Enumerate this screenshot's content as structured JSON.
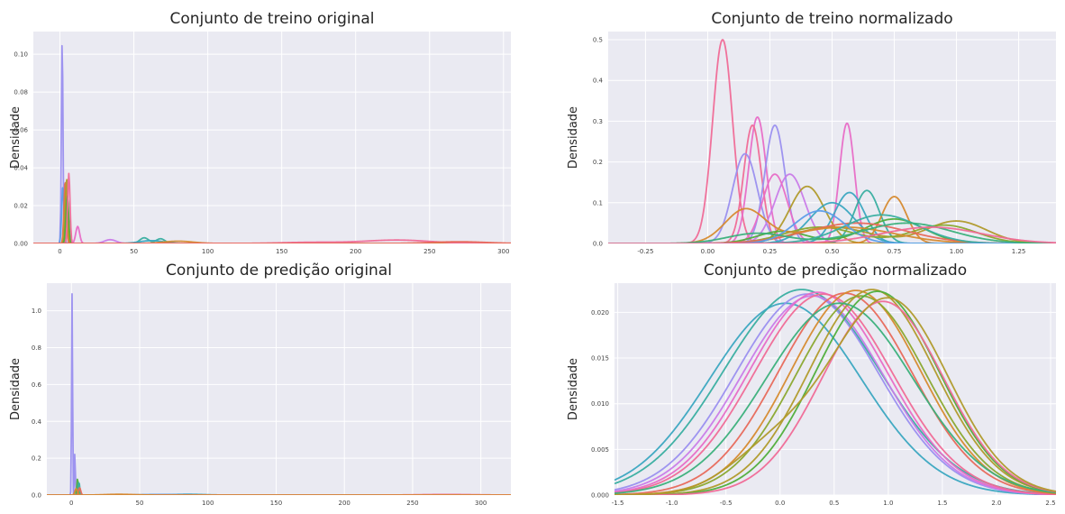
{
  "figure": {
    "background": "#ffffff",
    "axes_background": "#eaeaf2",
    "grid_color": "#ffffff",
    "palette": [
      "#e8695a",
      "#d68a2e",
      "#b09a2a",
      "#8aa82e",
      "#4fae3a",
      "#3ab07a",
      "#38aea0",
      "#3aa6c0",
      "#5b9de8",
      "#9a8fef",
      "#c97be8",
      "#e86cc6",
      "#f06a96"
    ]
  },
  "chart_data": [
    {
      "id": "treino-original",
      "type": "line",
      "subtype": "kde",
      "title": "Conjunto de treino original",
      "xlabel": "",
      "ylabel": "Densidade",
      "xlim": [
        -18,
        305
      ],
      "ylim": [
        0,
        0.112
      ],
      "xticks": [
        0,
        50,
        100,
        150,
        200,
        250,
        300
      ],
      "yticks": [
        0.0,
        0.02,
        0.04,
        0.06,
        0.08,
        0.1
      ],
      "xtick_labels": [
        "0",
        "50",
        "100",
        "150",
        "200",
        "250",
        "300"
      ],
      "ytick_labels": [
        "0.00",
        "0.02",
        "0.04",
        "0.06",
        "0.08",
        "0.10"
      ],
      "grid": true,
      "series": [
        {
          "color": "#9a8fef",
          "peaks": [
            [
              1.5,
              0.107,
              0.55
            ]
          ]
        },
        {
          "color": "#5b9de8",
          "peaks": [
            [
              2,
              0.03,
              0.8
            ]
          ]
        },
        {
          "color": "#e8695a",
          "peaks": [
            [
              3.5,
              0.033,
              0.8
            ]
          ]
        },
        {
          "color": "#d68a2e",
          "peaks": [
            [
              4,
              0.028,
              0.9
            ]
          ]
        },
        {
          "color": "#b09a2a",
          "peaks": [
            [
              4.5,
              0.034,
              0.8
            ]
          ]
        },
        {
          "color": "#4fae3a",
          "peaks": [
            [
              5,
              0.025,
              0.9
            ]
          ]
        },
        {
          "color": "#f06a96",
          "peaks": [
            [
              6,
              0.037,
              0.8
            ]
          ]
        },
        {
          "color": "#e86cc6",
          "peaks": [
            [
              12,
              0.009,
              1.3
            ]
          ]
        },
        {
          "color": "#c97be8",
          "peaks": [
            [
              34,
              0.002,
              4
            ]
          ]
        },
        {
          "color": "#38aea0",
          "peaks": [
            [
              57,
              0.003,
              3
            ],
            [
              68,
              0.0025,
              3
            ]
          ]
        },
        {
          "color": "#3aa6c0",
          "peaks": [
            [
              62,
              0.0015,
              8
            ]
          ]
        },
        {
          "color": "#d68a2e",
          "peaks": [
            [
              80,
              0.0012,
              10
            ]
          ]
        },
        {
          "color": "#f06a96",
          "peaks": [
            [
              228,
              0.0018,
              22
            ],
            [
              170,
              0.0006,
              20
            ]
          ]
        },
        {
          "color": "#e8695a",
          "peaks": [
            [
              270,
              0.0009,
              18
            ]
          ]
        }
      ]
    },
    {
      "id": "treino-normalizado",
      "type": "line",
      "subtype": "kde",
      "title": "Conjunto de treino normalizado",
      "xlabel": "",
      "ylabel": "Densidade",
      "xlim": [
        -0.4,
        1.4
      ],
      "ylim": [
        0,
        0.52
      ],
      "xticks": [
        -0.25,
        0.0,
        0.25,
        0.5,
        0.75,
        1.0,
        1.25
      ],
      "yticks": [
        0.0,
        0.1,
        0.2,
        0.3,
        0.4,
        0.5
      ],
      "xtick_labels": [
        "-0.25",
        "0.00",
        "0.25",
        "0.50",
        "0.75",
        "1.00",
        "1.25"
      ],
      "ytick_labels": [
        "0.0",
        "0.1",
        "0.2",
        "0.3",
        "0.4",
        "0.5"
      ],
      "grid": true,
      "series": [
        {
          "color": "#f06a96",
          "peaks": [
            [
              0.06,
              0.5,
              0.04
            ]
          ]
        },
        {
          "color": "#e86cc6",
          "peaks": [
            [
              0.2,
              0.31,
              0.035
            ]
          ]
        },
        {
          "color": "#f06a96",
          "peaks": [
            [
              0.18,
              0.29,
              0.035
            ]
          ]
        },
        {
          "color": "#9a8fef",
          "peaks": [
            [
              0.27,
              0.29,
              0.04
            ]
          ]
        },
        {
          "color": "#9a8fef",
          "peaks": [
            [
              0.15,
              0.22,
              0.05
            ]
          ]
        },
        {
          "color": "#e86cc6",
          "peaks": [
            [
              0.56,
              0.295,
              0.03
            ]
          ]
        },
        {
          "color": "#c97be8",
          "peaks": [
            [
              0.33,
              0.17,
              0.06
            ]
          ]
        },
        {
          "color": "#e86cc6",
          "peaks": [
            [
              0.27,
              0.17,
              0.05
            ]
          ]
        },
        {
          "color": "#b09a2a",
          "peaks": [
            [
              0.4,
              0.14,
              0.07
            ]
          ]
        },
        {
          "color": "#3aa6c0",
          "peaks": [
            [
              0.57,
              0.125,
              0.06
            ]
          ]
        },
        {
          "color": "#38aea0",
          "peaks": [
            [
              0.64,
              0.13,
              0.05
            ]
          ]
        },
        {
          "color": "#d68a2e",
          "peaks": [
            [
              0.75,
              0.115,
              0.05
            ]
          ]
        },
        {
          "color": "#3aa6c0",
          "peaks": [
            [
              0.5,
              0.1,
              0.09
            ]
          ]
        },
        {
          "color": "#4fae3a",
          "peaks": [
            [
              0.75,
              0.06,
              0.12
            ],
            [
              0.3,
              0.03,
              0.1
            ]
          ]
        },
        {
          "color": "#b09a2a",
          "peaks": [
            [
              1.0,
              0.055,
              0.12
            ],
            [
              0.5,
              0.04,
              0.15
            ]
          ]
        },
        {
          "color": "#8aa82e",
          "peaks": [
            [
              0.95,
              0.045,
              0.13
            ],
            [
              0.45,
              0.04,
              0.14
            ]
          ]
        },
        {
          "color": "#e8695a",
          "peaks": [
            [
              0.6,
              0.05,
              0.2
            ]
          ]
        },
        {
          "color": "#d68a2e",
          "peaks": [
            [
              0.15,
              0.08,
              0.08
            ],
            [
              0.55,
              0.04,
              0.2
            ]
          ]
        },
        {
          "color": "#38aea0",
          "peaks": [
            [
              0.7,
              0.07,
              0.15
            ]
          ]
        },
        {
          "color": "#5b9de8",
          "peaks": [
            [
              0.45,
              0.08,
              0.1
            ]
          ]
        },
        {
          "color": "#3ab07a",
          "peaks": [
            [
              0.8,
              0.05,
              0.18
            ],
            [
              0.2,
              0.025,
              0.12
            ]
          ]
        },
        {
          "color": "#f06a96",
          "peaks": [
            [
              0.9,
              0.04,
              0.2
            ]
          ]
        }
      ]
    },
    {
      "id": "predicao-original",
      "type": "line",
      "subtype": "kde",
      "title": "Conjunto de predição original",
      "xlabel": "",
      "ylabel": "Densidade",
      "xlim": [
        -18,
        322
      ],
      "ylim": [
        0,
        1.15
      ],
      "xticks": [
        0,
        50,
        100,
        150,
        200,
        250,
        300
      ],
      "yticks": [
        0.0,
        0.2,
        0.4,
        0.6,
        0.8,
        1.0
      ],
      "xtick_labels": [
        "0",
        "50",
        "100",
        "150",
        "200",
        "250",
        "300"
      ],
      "ytick_labels": [
        "0.0",
        "0.2",
        "0.4",
        "0.6",
        "0.8",
        "1.0"
      ],
      "grid": true,
      "series": [
        {
          "color": "#9a8fef",
          "peaks": [
            [
              0.5,
              1.1,
              0.35
            ]
          ]
        },
        {
          "color": "#9a8fef",
          "peaks": [
            [
              2.5,
              0.23,
              0.35
            ]
          ]
        },
        {
          "color": "#4fae3a",
          "peaks": [
            [
              4.5,
              0.09,
              0.5
            ]
          ]
        },
        {
          "color": "#38aea0",
          "peaks": [
            [
              5.5,
              0.07,
              0.6
            ]
          ]
        },
        {
          "color": "#e8695a",
          "peaks": [
            [
              6,
              0.04,
              0.8
            ]
          ]
        },
        {
          "color": "#d68a2e",
          "peaks": [
            [
              3.5,
              0.035,
              0.9
            ]
          ]
        },
        {
          "color": "#3aa6c0",
          "peaks": [
            [
              85,
              0.004,
              12
            ]
          ]
        },
        {
          "color": "#5b9de8",
          "peaks": [
            [
              65,
              0.003,
              15
            ]
          ]
        },
        {
          "color": "#f06a96",
          "peaks": [
            [
              275,
              0.003,
              20
            ]
          ]
        },
        {
          "color": "#d68a2e",
          "peaks": [
            [
              35,
              0.004,
              10
            ]
          ]
        }
      ]
    },
    {
      "id": "predicao-normalizado",
      "type": "line",
      "subtype": "kde",
      "title": "Conjunto de predição normalizado",
      "xlabel": "",
      "ylabel": "Densidade",
      "xlim": [
        -1.53,
        2.55
      ],
      "ylim": [
        0,
        0.0232
      ],
      "xticks": [
        -1.5,
        -1.0,
        -0.5,
        0.0,
        0.5,
        1.0,
        1.5,
        2.0,
        2.5
      ],
      "yticks": [
        0.0,
        0.005,
        0.01,
        0.015,
        0.02
      ],
      "xtick_labels": [
        "-1.5",
        "-1.0",
        "-0.5",
        "0.0",
        "0.5",
        "1.0",
        "1.5",
        "2.0",
        "2.5"
      ],
      "ytick_labels": [
        "0.000",
        "0.005",
        "0.010",
        "0.015",
        "0.020"
      ],
      "grid": true,
      "series": [
        {
          "color": "#38aea0",
          "peaks": [
            [
              0.2,
              0.0225,
              0.72
            ]
          ]
        },
        {
          "color": "#3aa6c0",
          "peaks": [
            [
              0.05,
              0.021,
              0.7
            ]
          ]
        },
        {
          "color": "#9a8fef",
          "peaks": [
            [
              0.25,
              0.022,
              0.66
            ]
          ]
        },
        {
          "color": "#c97be8",
          "peaks": [
            [
              0.3,
              0.0218,
              0.65
            ]
          ]
        },
        {
          "color": "#e86cc6",
          "peaks": [
            [
              0.35,
              0.0222,
              0.64
            ]
          ]
        },
        {
          "color": "#f06a96",
          "peaks": [
            [
              0.4,
              0.022,
              0.64
            ]
          ]
        },
        {
          "color": "#e8695a",
          "peaks": [
            [
              0.6,
              0.0221,
              0.62
            ]
          ]
        },
        {
          "color": "#d68a2e",
          "peaks": [
            [
              0.7,
              0.0224,
              0.6
            ]
          ]
        },
        {
          "color": "#b09a2a",
          "peaks": [
            [
              0.85,
              0.0225,
              0.58
            ]
          ]
        },
        {
          "color": "#8aa82e",
          "peaks": [
            [
              0.75,
              0.0218,
              0.6
            ]
          ]
        },
        {
          "color": "#4fae3a",
          "peaks": [
            [
              0.9,
              0.0223,
              0.57
            ]
          ]
        },
        {
          "color": "#3ab07a",
          "peaks": [
            [
              0.55,
              0.021,
              0.68
            ]
          ]
        },
        {
          "color": "#f06a96",
          "peaks": [
            [
              0.95,
              0.0212,
              0.56
            ]
          ]
        },
        {
          "color": "#b09a2a",
          "peaks": [
            [
              1.0,
              0.0215,
              0.55
            ],
            [
              -0.1,
              0.004,
              0.4
            ]
          ]
        }
      ]
    }
  ]
}
